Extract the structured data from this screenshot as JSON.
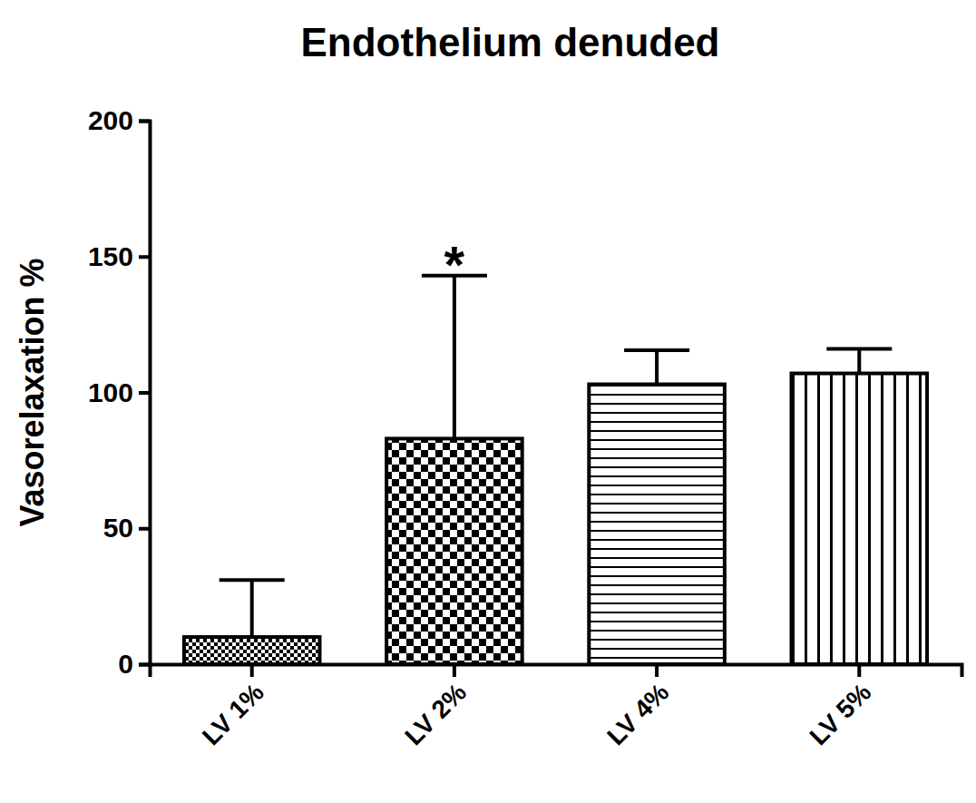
{
  "chart_data": {
    "type": "bar",
    "title": "Endothelium denuded",
    "y_label": "Vasorelaxation %",
    "categories": [
      "LV 1%",
      "LV 2%",
      "LV 4%",
      "LV 5%"
    ],
    "values": [
      10,
      83,
      103,
      107
    ],
    "errors": [
      21,
      60,
      12.5,
      9
    ],
    "color": "#000000",
    "ylim": [
      0,
      200
    ],
    "yticks": [
      0,
      50,
      100,
      150,
      200
    ],
    "grid": false,
    "annotations": [
      {
        "label": "*",
        "category": "LV 2%"
      }
    ]
  }
}
